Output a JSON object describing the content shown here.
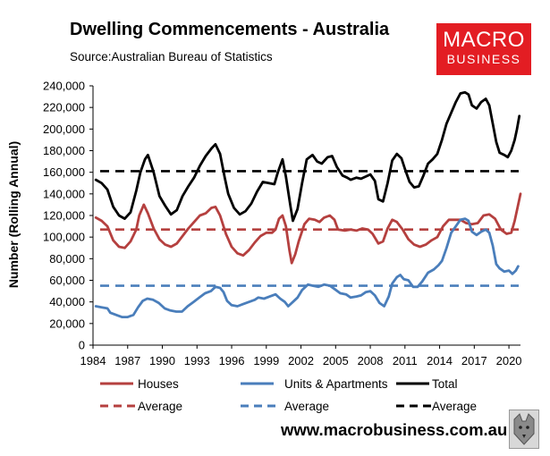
{
  "header": {
    "title": "Dwelling Commencements - Australia",
    "source": "Source:Australian Bureau of Statistics"
  },
  "logo": {
    "line1": "MACRO",
    "line2": "BUSINESS"
  },
  "footer": {
    "website": "www.macrobusiness.com.au"
  },
  "colors": {
    "houses": "#b5403f",
    "units": "#4a7ebb",
    "total": "#000000",
    "brand": "#e31d23"
  },
  "chart_data": {
    "type": "line",
    "title": "Dwelling Commencements - Australia",
    "ylabel": "Number (Rolling Annual)",
    "xlabel": "",
    "xlim": [
      1984,
      2021
    ],
    "ylim": [
      0,
      240000
    ],
    "grid": false,
    "legend_position": "bottom",
    "xticks": [
      "1984",
      "1987",
      "1990",
      "1993",
      "1996",
      "1999",
      "2002",
      "2005",
      "2008",
      "2011",
      "2014",
      "2017",
      "2020"
    ],
    "yticks": [
      "0",
      "20,000",
      "40,000",
      "60,000",
      "80,000",
      "100,000",
      "120,000",
      "140,000",
      "160,000",
      "180,000",
      "200,000",
      "220,000",
      "240,000"
    ],
    "series": [
      {
        "name": "Houses",
        "color": "#b5403f",
        "points": [
          [
            1984.25,
            118000
          ],
          [
            1984.75,
            115000
          ],
          [
            1985.25,
            110000
          ],
          [
            1985.75,
            97000
          ],
          [
            1986.25,
            91000
          ],
          [
            1986.75,
            90000
          ],
          [
            1987.25,
            96000
          ],
          [
            1987.75,
            107000
          ],
          [
            1988.0,
            120000
          ],
          [
            1988.4,
            130000
          ],
          [
            1988.75,
            122000
          ],
          [
            1989.25,
            108000
          ],
          [
            1989.75,
            98000
          ],
          [
            1990.25,
            93000
          ],
          [
            1990.75,
            91000
          ],
          [
            1991.25,
            94000
          ],
          [
            1991.75,
            101000
          ],
          [
            1992.25,
            108000
          ],
          [
            1992.75,
            114000
          ],
          [
            1993.25,
            120000
          ],
          [
            1993.75,
            122000
          ],
          [
            1994.25,
            127000
          ],
          [
            1994.6,
            128000
          ],
          [
            1995.0,
            120000
          ],
          [
            1995.5,
            103000
          ],
          [
            1996.0,
            91000
          ],
          [
            1996.5,
            85000
          ],
          [
            1997.0,
            83000
          ],
          [
            1997.5,
            88000
          ],
          [
            1998.0,
            95000
          ],
          [
            1998.5,
            101000
          ],
          [
            1999.0,
            104000
          ],
          [
            1999.5,
            104000
          ],
          [
            1999.8,
            107000
          ],
          [
            2000.1,
            117000
          ],
          [
            2000.4,
            120000
          ],
          [
            2000.7,
            110000
          ],
          [
            2001.0,
            88000
          ],
          [
            2001.2,
            76000
          ],
          [
            2001.5,
            84000
          ],
          [
            2001.8,
            96000
          ],
          [
            2002.3,
            112000
          ],
          [
            2002.7,
            117000
          ],
          [
            2003.2,
            116000
          ],
          [
            2003.6,
            114000
          ],
          [
            2004.0,
            118000
          ],
          [
            2004.5,
            120000
          ],
          [
            2004.9,
            116000
          ],
          [
            2005.2,
            107000
          ],
          [
            2005.8,
            106000
          ],
          [
            2006.3,
            107000
          ],
          [
            2006.8,
            106000
          ],
          [
            2007.3,
            108000
          ],
          [
            2007.8,
            107000
          ],
          [
            2008.2,
            103000
          ],
          [
            2008.7,
            94000
          ],
          [
            2009.1,
            96000
          ],
          [
            2009.5,
            108000
          ],
          [
            2009.9,
            116000
          ],
          [
            2010.3,
            114000
          ],
          [
            2010.8,
            107000
          ],
          [
            2011.3,
            98000
          ],
          [
            2011.8,
            93000
          ],
          [
            2012.3,
            91000
          ],
          [
            2012.8,
            93000
          ],
          [
            2013.3,
            97000
          ],
          [
            2013.8,
            100000
          ],
          [
            2014.3,
            110000
          ],
          [
            2014.8,
            116000
          ],
          [
            2015.3,
            116000
          ],
          [
            2015.8,
            116000
          ],
          [
            2016.3,
            113000
          ],
          [
            2016.8,
            112000
          ],
          [
            2017.3,
            113000
          ],
          [
            2017.8,
            120000
          ],
          [
            2018.3,
            121000
          ],
          [
            2018.8,
            117000
          ],
          [
            2019.3,
            107000
          ],
          [
            2019.8,
            103000
          ],
          [
            2020.2,
            104000
          ],
          [
            2020.5,
            115000
          ],
          [
            2020.8,
            130000
          ],
          [
            2021.0,
            140000
          ]
        ]
      },
      {
        "name": "Units & Apartments",
        "color": "#4a7ebb",
        "points": [
          [
            1984.25,
            36000
          ],
          [
            1984.75,
            35000
          ],
          [
            1985.25,
            34000
          ],
          [
            1985.5,
            30000
          ],
          [
            1986.0,
            28000
          ],
          [
            1986.5,
            26000
          ],
          [
            1987.0,
            26000
          ],
          [
            1987.5,
            28000
          ],
          [
            1987.9,
            35000
          ],
          [
            1988.3,
            41000
          ],
          [
            1988.7,
            43000
          ],
          [
            1989.2,
            42000
          ],
          [
            1989.7,
            39000
          ],
          [
            1990.2,
            34000
          ],
          [
            1990.7,
            32000
          ],
          [
            1991.2,
            31000
          ],
          [
            1991.7,
            31000
          ],
          [
            1992.2,
            36000
          ],
          [
            1992.7,
            40000
          ],
          [
            1993.2,
            44000
          ],
          [
            1993.7,
            48000
          ],
          [
            1994.2,
            50000
          ],
          [
            1994.6,
            54000
          ],
          [
            1995.0,
            53000
          ],
          [
            1995.3,
            49000
          ],
          [
            1995.6,
            41000
          ],
          [
            1996.0,
            37000
          ],
          [
            1996.5,
            36000
          ],
          [
            1997.0,
            38000
          ],
          [
            1997.5,
            40000
          ],
          [
            1998.0,
            42000
          ],
          [
            1998.3,
            44000
          ],
          [
            1998.8,
            43000
          ],
          [
            1999.3,
            45000
          ],
          [
            1999.8,
            47000
          ],
          [
            2000.2,
            43000
          ],
          [
            2000.6,
            40000
          ],
          [
            2000.9,
            36000
          ],
          [
            2001.3,
            40000
          ],
          [
            2001.7,
            44000
          ],
          [
            2002.1,
            51000
          ],
          [
            2002.6,
            56000
          ],
          [
            2003.0,
            55000
          ],
          [
            2003.5,
            54000
          ],
          [
            2004.0,
            56000
          ],
          [
            2004.5,
            55000
          ],
          [
            2004.9,
            52000
          ],
          [
            2005.4,
            48000
          ],
          [
            2005.9,
            47000
          ],
          [
            2006.3,
            44000
          ],
          [
            2006.8,
            45000
          ],
          [
            2007.2,
            46000
          ],
          [
            2007.6,
            49000
          ],
          [
            2008.0,
            50000
          ],
          [
            2008.4,
            46000
          ],
          [
            2008.8,
            39000
          ],
          [
            2009.2,
            36000
          ],
          [
            2009.6,
            45000
          ],
          [
            2009.9,
            57000
          ],
          [
            2010.3,
            63000
          ],
          [
            2010.6,
            65000
          ],
          [
            2010.9,
            61000
          ],
          [
            2011.3,
            60000
          ],
          [
            2011.7,
            54000
          ],
          [
            2012.1,
            54000
          ],
          [
            2012.5,
            59000
          ],
          [
            2013.0,
            67000
          ],
          [
            2013.5,
            70000
          ],
          [
            2013.9,
            74000
          ],
          [
            2014.2,
            78000
          ],
          [
            2014.6,
            90000
          ],
          [
            2015.0,
            104000
          ],
          [
            2015.4,
            110000
          ],
          [
            2015.8,
            116000
          ],
          [
            2016.2,
            117000
          ],
          [
            2016.5,
            115000
          ],
          [
            2016.8,
            105000
          ],
          [
            2017.2,
            102000
          ],
          [
            2017.6,
            105000
          ],
          [
            2018.0,
            107000
          ],
          [
            2018.3,
            104000
          ],
          [
            2018.6,
            92000
          ],
          [
            2018.9,
            75000
          ],
          [
            2019.2,
            71000
          ],
          [
            2019.6,
            68000
          ],
          [
            2020.0,
            69000
          ],
          [
            2020.3,
            66000
          ],
          [
            2020.6,
            69000
          ],
          [
            2020.8,
            73000
          ]
        ]
      },
      {
        "name": "Total",
        "color": "#000000",
        "points": [
          [
            1984.25,
            153000
          ],
          [
            1984.75,
            150000
          ],
          [
            1985.25,
            144000
          ],
          [
            1985.75,
            128000
          ],
          [
            1986.25,
            120000
          ],
          [
            1986.75,
            117000
          ],
          [
            1987.25,
            123000
          ],
          [
            1987.75,
            143000
          ],
          [
            1988.1,
            160000
          ],
          [
            1988.5,
            172000
          ],
          [
            1988.75,
            176000
          ],
          [
            1989.25,
            160000
          ],
          [
            1989.75,
            138000
          ],
          [
            1990.25,
            129000
          ],
          [
            1990.75,
            121000
          ],
          [
            1991.25,
            125000
          ],
          [
            1991.75,
            138000
          ],
          [
            1992.25,
            147000
          ],
          [
            1992.75,
            155000
          ],
          [
            1993.25,
            166000
          ],
          [
            1993.75,
            175000
          ],
          [
            1994.25,
            182000
          ],
          [
            1994.6,
            186000
          ],
          [
            1995.0,
            177000
          ],
          [
            1995.4,
            155000
          ],
          [
            1995.7,
            140000
          ],
          [
            1996.2,
            127000
          ],
          [
            1996.7,
            121000
          ],
          [
            1997.2,
            124000
          ],
          [
            1997.7,
            131000
          ],
          [
            1998.2,
            142000
          ],
          [
            1998.7,
            151000
          ],
          [
            1999.2,
            150000
          ],
          [
            1999.7,
            149000
          ],
          [
            2000.0,
            160000
          ],
          [
            2000.4,
            172000
          ],
          [
            2000.7,
            156000
          ],
          [
            2001.1,
            128000
          ],
          [
            2001.3,
            115000
          ],
          [
            2001.7,
            126000
          ],
          [
            2002.1,
            150000
          ],
          [
            2002.5,
            172000
          ],
          [
            2003.0,
            176000
          ],
          [
            2003.4,
            170000
          ],
          [
            2003.8,
            168000
          ],
          [
            2004.3,
            174000
          ],
          [
            2004.7,
            175000
          ],
          [
            2005.1,
            165000
          ],
          [
            2005.6,
            157000
          ],
          [
            2006.0,
            155000
          ],
          [
            2006.3,
            153000
          ],
          [
            2006.8,
            155000
          ],
          [
            2007.2,
            154000
          ],
          [
            2007.6,
            156000
          ],
          [
            2008.0,
            158000
          ],
          [
            2008.4,
            152000
          ],
          [
            2008.7,
            135000
          ],
          [
            2009.1,
            133000
          ],
          [
            2009.5,
            150000
          ],
          [
            2009.9,
            171000
          ],
          [
            2010.3,
            177000
          ],
          [
            2010.7,
            173000
          ],
          [
            2011.0,
            163000
          ],
          [
            2011.4,
            151000
          ],
          [
            2011.8,
            146000
          ],
          [
            2012.2,
            147000
          ],
          [
            2012.6,
            157000
          ],
          [
            2013.0,
            168000
          ],
          [
            2013.4,
            172000
          ],
          [
            2013.8,
            177000
          ],
          [
            2014.2,
            190000
          ],
          [
            2014.6,
            205000
          ],
          [
            2015.0,
            215000
          ],
          [
            2015.4,
            225000
          ],
          [
            2015.8,
            233000
          ],
          [
            2016.2,
            234000
          ],
          [
            2016.5,
            232000
          ],
          [
            2016.8,
            222000
          ],
          [
            2017.2,
            219000
          ],
          [
            2017.6,
            225000
          ],
          [
            2018.0,
            228000
          ],
          [
            2018.3,
            222000
          ],
          [
            2018.6,
            205000
          ],
          [
            2018.9,
            188000
          ],
          [
            2019.2,
            178000
          ],
          [
            2019.6,
            176000
          ],
          [
            2019.9,
            174000
          ],
          [
            2020.2,
            180000
          ],
          [
            2020.5,
            190000
          ],
          [
            2020.7,
            200000
          ],
          [
            2020.9,
            212000
          ]
        ]
      }
    ],
    "averages": [
      {
        "name": "Average",
        "series": "Houses",
        "value": 107000,
        "color": "#b5403f"
      },
      {
        "name": "Average",
        "series": "Units & Apartments",
        "value": 55000,
        "color": "#4a7ebb"
      },
      {
        "name": "Average",
        "series": "Total",
        "value": 161000,
        "color": "#000000"
      }
    ]
  }
}
